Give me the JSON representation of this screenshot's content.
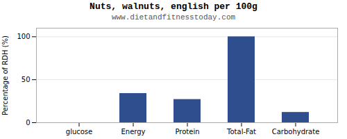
{
  "chart_data": {
    "type": "bar",
    "title": "Nuts, walnuts, english per 100g",
    "subtitle": "www.dietandfitnesstoday.com",
    "categories": [
      "glucose",
      "Energy",
      "Protein",
      "Total-Fat",
      "Carbohydrate"
    ],
    "values": [
      0,
      34,
      27,
      100,
      12
    ],
    "color": "#2e4e8e",
    "ylabel": "Percentage of RDH (%)",
    "ylim": [
      0,
      110
    ],
    "yticks": [
      0,
      50,
      100
    ],
    "grid": true
  }
}
